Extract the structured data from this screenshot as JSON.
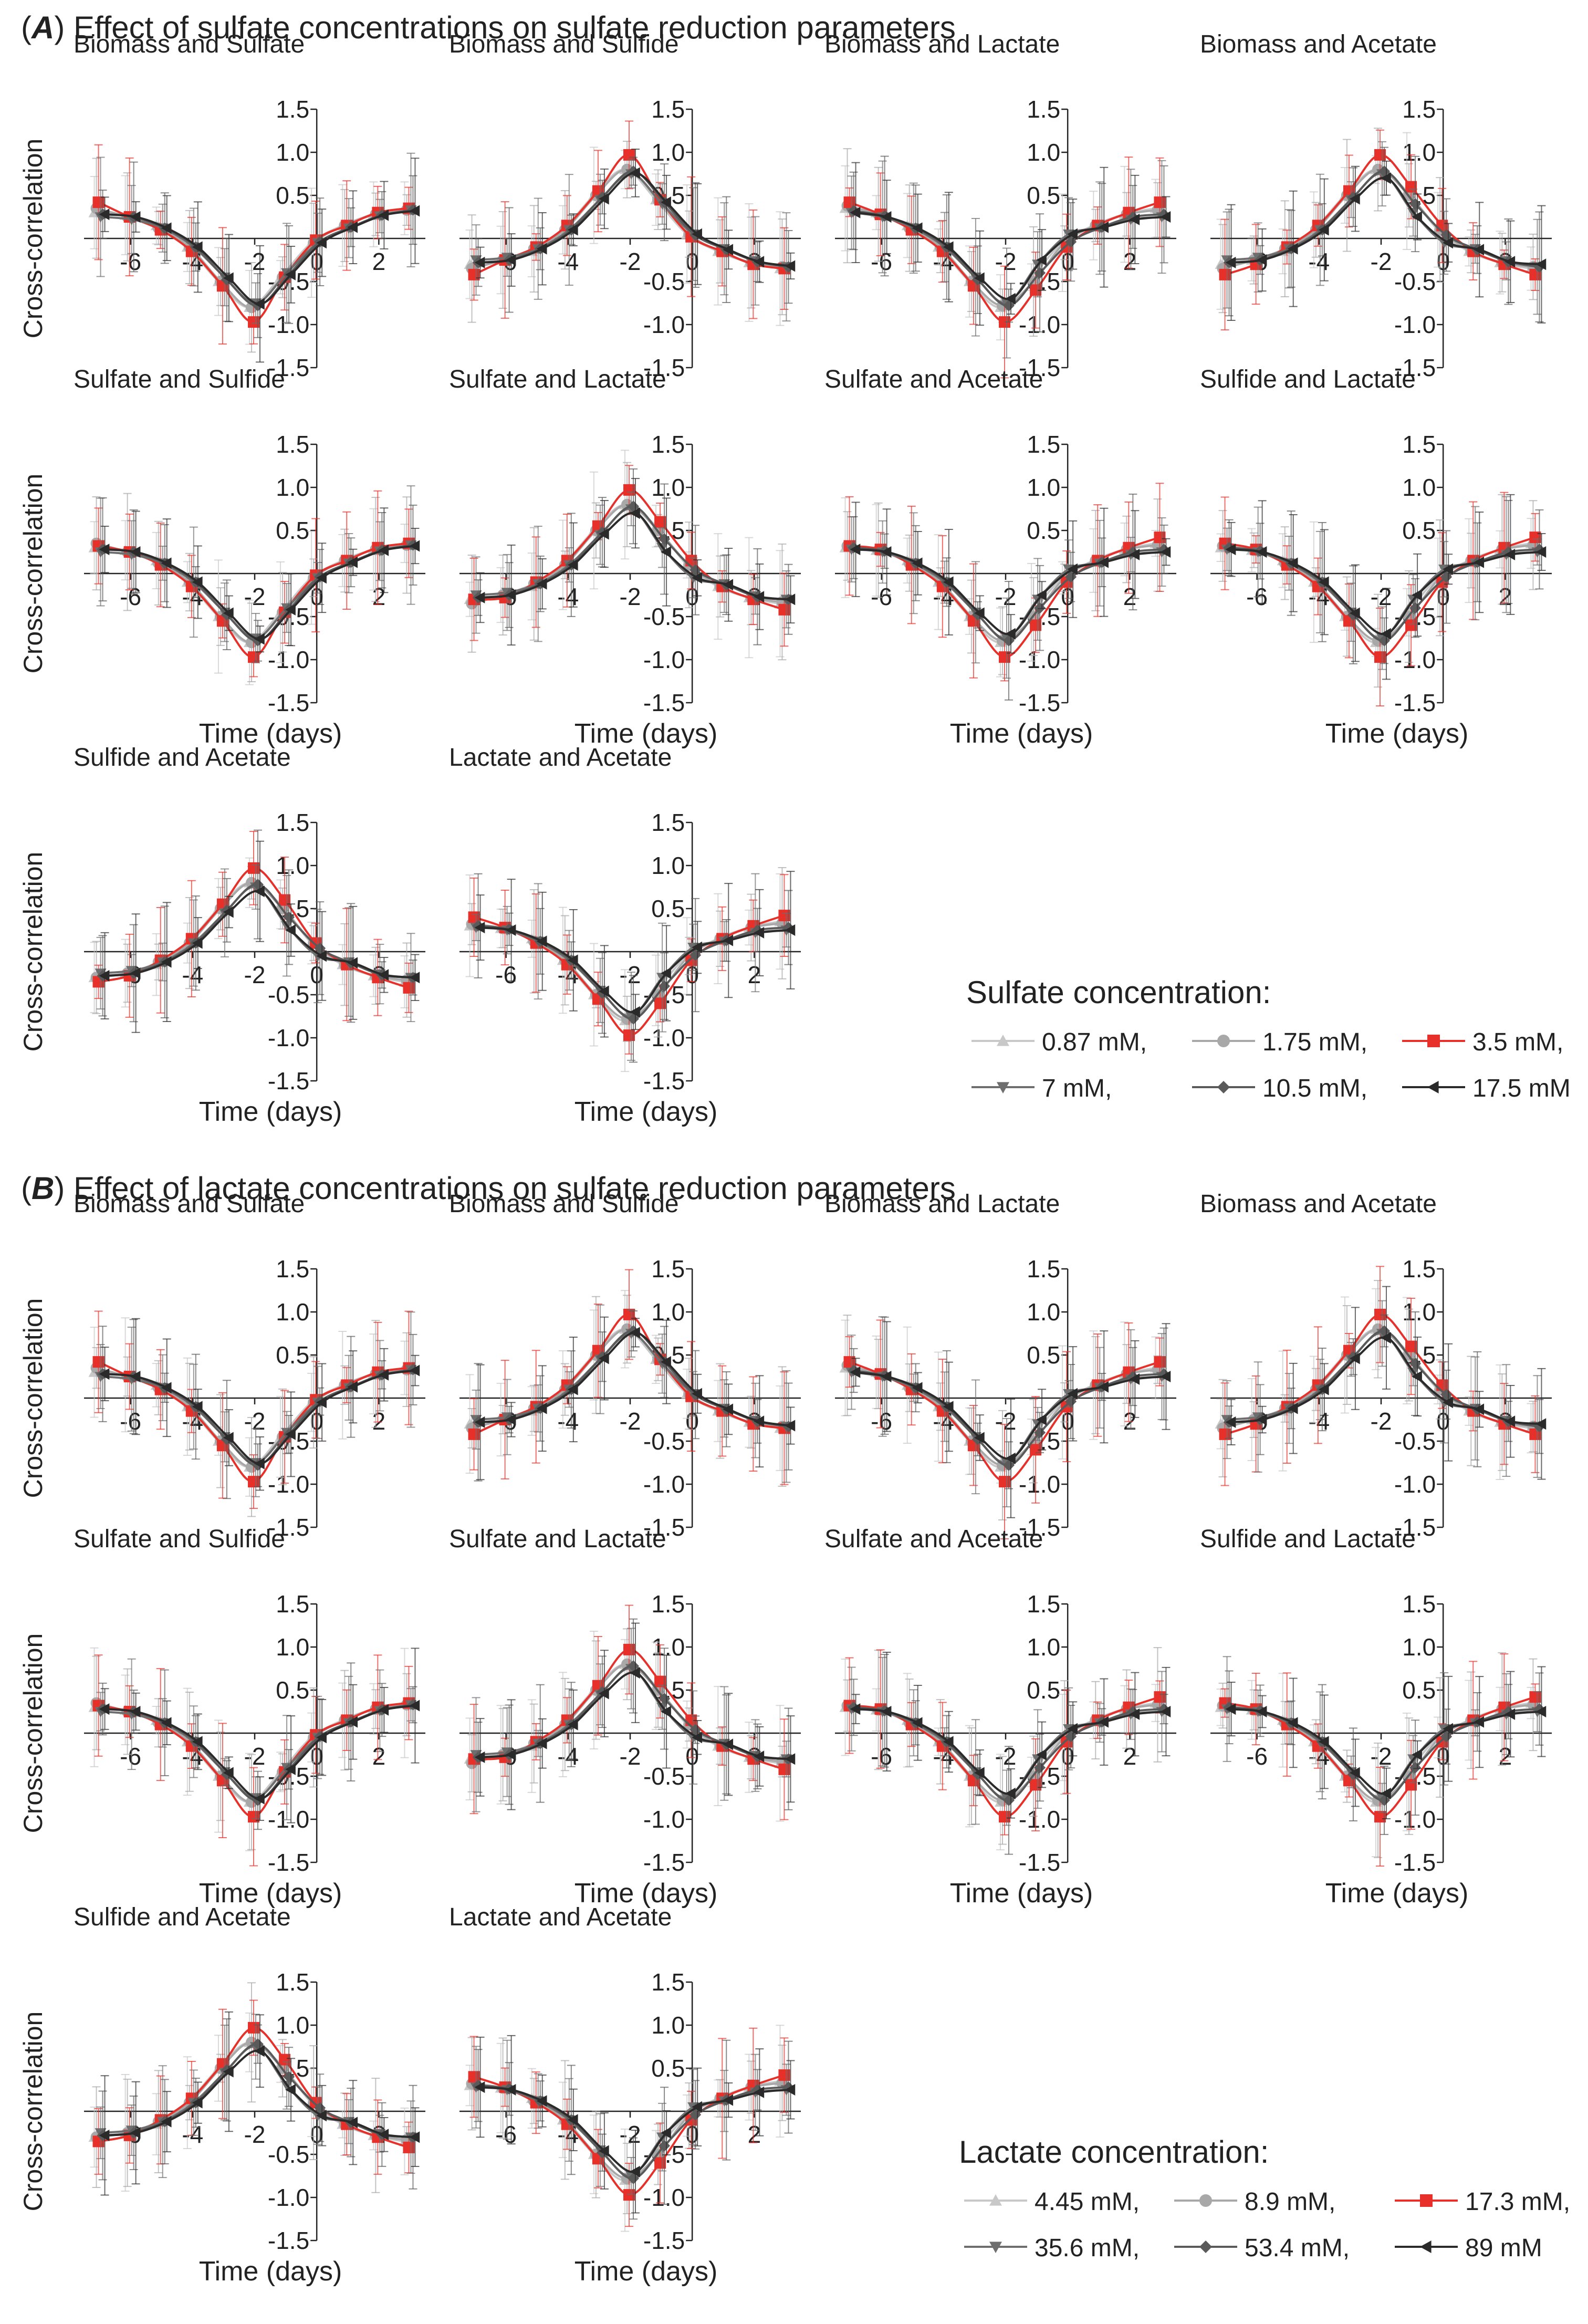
{
  "sections": [
    {
      "letter": "A",
      "title": "Effect of sulfate concentrations on sulfate reduction parameters",
      "legend_title": "Sulfate concentration:",
      "series": [
        {
          "name": "0.87 mM,",
          "color": "#c8c8c8",
          "marker": "triangle-up"
        },
        {
          "name": "1.75 mM,",
          "color": "#a8a8a8",
          "marker": "circle"
        },
        {
          "name": "3.5 mM,",
          "color": "#e8302a",
          "marker": "square"
        },
        {
          "name": "7 mM,",
          "color": "#6e6e6e",
          "marker": "triangle-down"
        },
        {
          "name": "10.5 mM,",
          "color": "#5a5a5a",
          "marker": "diamond"
        },
        {
          "name": "17.5 mM",
          "color": "#2a2a2a",
          "marker": "triangle-left"
        }
      ]
    },
    {
      "letter": "B",
      "title": "Effect of lactate concentrations on sulfate reduction parameters",
      "legend_title": "Lactate concentration:",
      "series": [
        {
          "name": "4.45 mM,",
          "color": "#c8c8c8",
          "marker": "triangle-up"
        },
        {
          "name": "8.9 mM,",
          "color": "#a8a8a8",
          "marker": "circle"
        },
        {
          "name": "17.3 mM,",
          "color": "#e8302a",
          "marker": "square"
        },
        {
          "name": "35.6 mM,",
          "color": "#6e6e6e",
          "marker": "triangle-down"
        },
        {
          "name": "53.4 mM,",
          "color": "#5a5a5a",
          "marker": "diamond"
        },
        {
          "name": "89 mM",
          "color": "#2a2a2a",
          "marker": "triangle-left"
        }
      ]
    }
  ],
  "chart_data": {
    "type": "line",
    "panels_per_section": 10,
    "xlabel": "Time (days)",
    "ylabel": "Cross-correlation",
    "xlim": [
      -7.5,
      3.5
    ],
    "ylim": [
      -1.5,
      1.5
    ],
    "x_ticks": [
      -6,
      -4,
      -2,
      0,
      2
    ],
    "y_ticks": [
      1.5,
      1.0,
      0.5,
      0.0,
      -0.5,
      -1.0,
      -1.5
    ],
    "y_tick_labels": [
      "1.5",
      "1.0",
      "0.5",
      "",
      "-0.5",
      "-1.0",
      "-1.5"
    ],
    "x": [
      -7,
      -6,
      -5,
      -4,
      -3,
      -2,
      -1,
      0,
      1,
      2,
      3
    ],
    "panels": [
      {
        "title": "Biomass and Sulfate",
        "shape": "trough",
        "series_values": [
          [
            0.3,
            0.27,
            0.15,
            -0.1,
            -0.5,
            -0.8,
            -0.45,
            -0.05,
            0.15,
            0.28,
            0.35
          ],
          [
            0.35,
            0.25,
            0.12,
            -0.1,
            -0.5,
            -0.8,
            -0.45,
            -0.05,
            0.15,
            0.28,
            0.33
          ],
          [
            0.42,
            0.25,
            0.1,
            -0.15,
            -0.55,
            -0.97,
            -0.45,
            -0.02,
            0.15,
            0.3,
            0.35
          ],
          [
            0.25,
            0.22,
            0.12,
            -0.1,
            -0.45,
            -0.75,
            -0.4,
            -0.05,
            0.12,
            0.26,
            0.33
          ],
          [
            0.28,
            0.25,
            0.12,
            -0.1,
            -0.48,
            -0.78,
            -0.42,
            -0.04,
            0.13,
            0.27,
            0.33
          ],
          [
            0.28,
            0.25,
            0.12,
            -0.1,
            -0.46,
            -0.76,
            -0.42,
            -0.05,
            0.13,
            0.27,
            0.32
          ]
        ]
      },
      {
        "title": "Biomass and Sulfide",
        "shape": "peak",
        "series_values": [
          [
            -0.3,
            -0.25,
            -0.15,
            0.1,
            0.5,
            0.8,
            0.45,
            0.05,
            -0.15,
            -0.28,
            -0.35
          ],
          [
            -0.35,
            -0.25,
            -0.12,
            0.1,
            0.5,
            0.8,
            0.45,
            0.05,
            -0.15,
            -0.28,
            -0.33
          ],
          [
            -0.42,
            -0.25,
            -0.1,
            0.15,
            0.55,
            0.97,
            0.45,
            0.02,
            -0.15,
            -0.3,
            -0.35
          ],
          [
            -0.25,
            -0.22,
            -0.12,
            0.1,
            0.45,
            0.75,
            0.4,
            0.05,
            -0.12,
            -0.26,
            -0.33
          ],
          [
            -0.28,
            -0.25,
            -0.12,
            0.1,
            0.48,
            0.78,
            0.42,
            0.04,
            -0.13,
            -0.27,
            -0.33
          ],
          [
            -0.28,
            -0.25,
            -0.12,
            0.1,
            0.46,
            0.76,
            0.42,
            0.05,
            -0.13,
            -0.27,
            -0.32
          ]
        ]
      },
      {
        "title": "Biomass and Lactate",
        "shape": "trough",
        "series_values": [
          [
            0.35,
            0.3,
            0.15,
            -0.1,
            -0.5,
            -0.8,
            -0.45,
            -0.05,
            0.15,
            0.28,
            0.35
          ],
          [
            0.38,
            0.28,
            0.12,
            -0.1,
            -0.5,
            -0.78,
            -0.5,
            -0.05,
            0.15,
            0.28,
            0.33
          ],
          [
            0.42,
            0.28,
            0.1,
            -0.15,
            -0.55,
            -0.97,
            -0.6,
            -0.1,
            0.15,
            0.3,
            0.42
          ],
          [
            0.3,
            0.25,
            0.12,
            -0.1,
            -0.45,
            -0.75,
            -0.3,
            0.05,
            0.12,
            0.22,
            0.25
          ],
          [
            0.32,
            0.26,
            0.12,
            -0.1,
            -0.48,
            -0.78,
            -0.4,
            -0.04,
            0.13,
            0.25,
            0.28
          ],
          [
            0.3,
            0.25,
            0.12,
            -0.1,
            -0.46,
            -0.7,
            -0.25,
            0.05,
            0.13,
            0.22,
            0.25
          ]
        ]
      },
      {
        "title": "Biomass and Acetate",
        "shape": "peak",
        "series_values": [
          [
            -0.3,
            -0.25,
            -0.15,
            0.1,
            0.5,
            0.8,
            0.55,
            0.1,
            -0.15,
            -0.28,
            -0.35
          ],
          [
            -0.35,
            -0.25,
            -0.12,
            0.1,
            0.5,
            0.8,
            0.5,
            0.1,
            -0.15,
            -0.28,
            -0.33
          ],
          [
            -0.42,
            -0.3,
            -0.1,
            0.15,
            0.55,
            0.97,
            0.6,
            0.15,
            -0.15,
            -0.3,
            -0.42
          ],
          [
            -0.25,
            -0.22,
            -0.12,
            0.1,
            0.45,
            0.75,
            0.3,
            -0.05,
            -0.12,
            -0.26,
            -0.33
          ],
          [
            -0.28,
            -0.25,
            -0.12,
            0.1,
            0.48,
            0.78,
            0.4,
            0.04,
            -0.13,
            -0.27,
            -0.33
          ],
          [
            -0.28,
            -0.25,
            -0.12,
            0.1,
            0.46,
            0.7,
            0.25,
            -0.05,
            -0.13,
            -0.27,
            -0.3
          ]
        ]
      },
      {
        "title": "Sulfate and Sulfide",
        "shape": "trough",
        "series_values": [
          [
            0.3,
            0.27,
            0.15,
            -0.1,
            -0.5,
            -0.8,
            -0.45,
            -0.05,
            0.15,
            0.28,
            0.35
          ],
          [
            0.35,
            0.25,
            0.12,
            -0.1,
            -0.5,
            -0.8,
            -0.45,
            -0.05,
            0.15,
            0.28,
            0.33
          ],
          [
            0.32,
            0.25,
            0.1,
            -0.15,
            -0.55,
            -0.97,
            -0.45,
            -0.02,
            0.15,
            0.3,
            0.35
          ],
          [
            0.25,
            0.22,
            0.12,
            -0.1,
            -0.45,
            -0.75,
            -0.4,
            -0.05,
            0.12,
            0.26,
            0.33
          ],
          [
            0.28,
            0.25,
            0.12,
            -0.1,
            -0.48,
            -0.78,
            -0.42,
            -0.04,
            0.13,
            0.27,
            0.33
          ],
          [
            0.28,
            0.25,
            0.12,
            -0.1,
            -0.46,
            -0.76,
            -0.42,
            -0.05,
            0.13,
            0.27,
            0.32
          ]
        ]
      },
      {
        "title": "Sulfate and Lactate",
        "shape": "peak",
        "series_values": [
          [
            -0.3,
            -0.25,
            -0.15,
            0.1,
            0.5,
            0.8,
            0.55,
            0.1,
            -0.15,
            -0.28,
            -0.35
          ],
          [
            -0.35,
            -0.25,
            -0.12,
            0.1,
            0.5,
            0.8,
            0.5,
            0.1,
            -0.15,
            -0.28,
            -0.33
          ],
          [
            -0.3,
            -0.28,
            -0.1,
            0.15,
            0.55,
            0.97,
            0.6,
            0.15,
            -0.15,
            -0.3,
            -0.42
          ],
          [
            -0.25,
            -0.22,
            -0.12,
            0.1,
            0.45,
            0.75,
            0.3,
            -0.05,
            -0.12,
            -0.26,
            -0.3
          ],
          [
            -0.28,
            -0.25,
            -0.12,
            0.1,
            0.48,
            0.78,
            0.4,
            0.04,
            -0.13,
            -0.27,
            -0.3
          ],
          [
            -0.28,
            -0.25,
            -0.12,
            0.1,
            0.46,
            0.7,
            0.25,
            -0.05,
            -0.13,
            -0.27,
            -0.3
          ]
        ]
      },
      {
        "title": "Sulfate and Acetate",
        "shape": "trough",
        "series_values": [
          [
            0.3,
            0.27,
            0.15,
            -0.1,
            -0.5,
            -0.8,
            -0.45,
            -0.05,
            0.15,
            0.28,
            0.35
          ],
          [
            0.32,
            0.27,
            0.12,
            -0.1,
            -0.5,
            -0.78,
            -0.5,
            -0.05,
            0.15,
            0.28,
            0.33
          ],
          [
            0.32,
            0.28,
            0.1,
            -0.15,
            -0.55,
            -0.97,
            -0.6,
            -0.1,
            0.15,
            0.3,
            0.42
          ],
          [
            0.28,
            0.25,
            0.12,
            -0.1,
            -0.45,
            -0.75,
            -0.3,
            0.05,
            0.12,
            0.22,
            0.25
          ],
          [
            0.3,
            0.26,
            0.12,
            -0.1,
            -0.48,
            -0.78,
            -0.4,
            -0.04,
            0.13,
            0.25,
            0.28
          ],
          [
            0.28,
            0.25,
            0.12,
            -0.1,
            -0.46,
            -0.7,
            -0.25,
            0.05,
            0.13,
            0.22,
            0.25
          ]
        ]
      },
      {
        "title": "Sulfide and Lactate",
        "shape": "trough",
        "series_values": [
          [
            0.3,
            0.27,
            0.15,
            -0.1,
            -0.5,
            -0.8,
            -0.45,
            -0.05,
            0.15,
            0.28,
            0.35
          ],
          [
            0.32,
            0.27,
            0.12,
            -0.1,
            -0.5,
            -0.78,
            -0.5,
            -0.05,
            0.15,
            0.28,
            0.33
          ],
          [
            0.35,
            0.28,
            0.1,
            -0.15,
            -0.55,
            -0.97,
            -0.6,
            -0.1,
            0.15,
            0.3,
            0.42
          ],
          [
            0.28,
            0.25,
            0.12,
            -0.1,
            -0.45,
            -0.75,
            -0.3,
            0.05,
            0.12,
            0.22,
            0.25
          ],
          [
            0.3,
            0.26,
            0.12,
            -0.1,
            -0.48,
            -0.78,
            -0.4,
            -0.04,
            0.13,
            0.25,
            0.28
          ],
          [
            0.28,
            0.25,
            0.12,
            -0.1,
            -0.46,
            -0.7,
            -0.25,
            0.05,
            0.13,
            0.22,
            0.25
          ]
        ]
      },
      {
        "title": "Sulfide and Acetate",
        "shape": "peak",
        "series_values": [
          [
            -0.3,
            -0.25,
            -0.15,
            0.1,
            0.5,
            0.8,
            0.55,
            0.1,
            -0.15,
            -0.28,
            -0.35
          ],
          [
            -0.3,
            -0.25,
            -0.12,
            0.1,
            0.5,
            0.8,
            0.5,
            0.1,
            -0.15,
            -0.28,
            -0.33
          ],
          [
            -0.35,
            -0.28,
            -0.1,
            0.15,
            0.55,
            0.97,
            0.6,
            0.1,
            -0.15,
            -0.3,
            -0.42
          ],
          [
            -0.25,
            -0.22,
            -0.12,
            0.1,
            0.45,
            0.75,
            0.3,
            -0.05,
            -0.12,
            -0.26,
            -0.3
          ],
          [
            -0.28,
            -0.25,
            -0.12,
            0.1,
            0.48,
            0.78,
            0.4,
            0.04,
            -0.13,
            -0.27,
            -0.3
          ],
          [
            -0.28,
            -0.25,
            -0.12,
            0.1,
            0.46,
            0.7,
            0.25,
            -0.05,
            -0.13,
            -0.27,
            -0.3
          ]
        ]
      },
      {
        "title": "Lactate and Acetate",
        "shape": "trough",
        "series_values": [
          [
            0.3,
            0.27,
            0.15,
            -0.1,
            -0.5,
            -0.8,
            -0.45,
            -0.05,
            0.15,
            0.28,
            0.35
          ],
          [
            0.32,
            0.27,
            0.12,
            -0.1,
            -0.5,
            -0.78,
            -0.5,
            -0.05,
            0.15,
            0.28,
            0.33
          ],
          [
            0.4,
            0.28,
            0.1,
            -0.15,
            -0.55,
            -0.97,
            -0.6,
            -0.1,
            0.15,
            0.3,
            0.42
          ],
          [
            0.28,
            0.25,
            0.12,
            -0.1,
            -0.45,
            -0.75,
            -0.3,
            0.05,
            0.12,
            0.22,
            0.25
          ],
          [
            0.3,
            0.26,
            0.12,
            -0.1,
            -0.48,
            -0.78,
            -0.4,
            -0.04,
            0.13,
            0.25,
            0.28
          ],
          [
            0.28,
            0.25,
            0.12,
            -0.1,
            -0.46,
            -0.7,
            -0.25,
            0.05,
            0.13,
            0.22,
            0.25
          ]
        ]
      }
    ]
  }
}
